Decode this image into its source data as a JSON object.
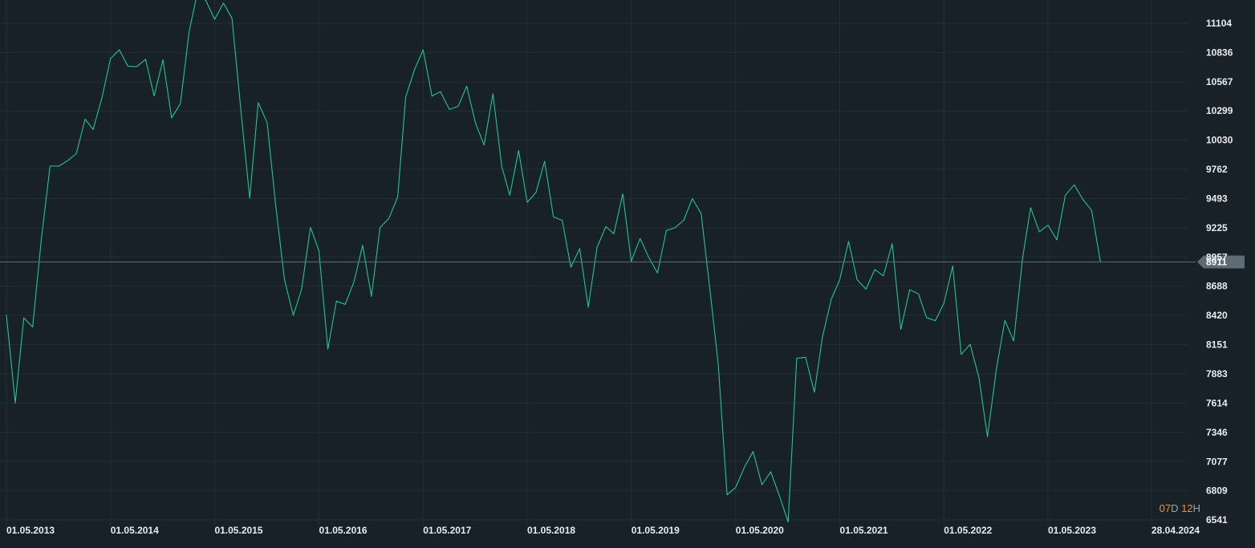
{
  "chart_data": {
    "type": "line",
    "title": "",
    "xlabel": "",
    "ylabel": "",
    "x_ticks": [
      "01.05.2013",
      "01.05.2014",
      "01.05.2015",
      "01.05.2016",
      "01.05.2017",
      "01.05.2018",
      "01.05.2019",
      "01.05.2020",
      "01.05.2021",
      "01.05.2022",
      "01.05.2023",
      "28.04.2024"
    ],
    "y_ticks": [
      11104,
      10836,
      10567,
      10299,
      10030,
      9762,
      9493,
      9225,
      8957,
      8688,
      8420,
      8151,
      7883,
      7614,
      7346,
      7077,
      6809,
      6541
    ],
    "ylim": [
      6541,
      11300
    ],
    "xlim": [
      "2013-05-01",
      "2024-04-28"
    ],
    "grid": true,
    "current_value": 8911,
    "current_value_label": "8911",
    "series": [
      {
        "color": "#1fc78c",
        "points": [
          [
            "2013-05-01",
            8426
          ],
          [
            "2013-06-01",
            7615
          ],
          [
            "2013-07-01",
            8398
          ],
          [
            "2013-08-01",
            8313
          ],
          [
            "2013-09-01",
            9133
          ],
          [
            "2013-10-01",
            9792
          ],
          [
            "2013-11-01",
            9792
          ],
          [
            "2013-12-01",
            9841
          ],
          [
            "2014-01-01",
            9906
          ],
          [
            "2014-02-01",
            10223
          ],
          [
            "2014-03-01",
            10128
          ],
          [
            "2014-04-01",
            10420
          ],
          [
            "2014-05-01",
            10779
          ],
          [
            "2014-06-01",
            10861
          ],
          [
            "2014-07-01",
            10709
          ],
          [
            "2014-08-01",
            10705
          ],
          [
            "2014-09-01",
            10773
          ],
          [
            "2014-10-01",
            10436
          ],
          [
            "2014-11-01",
            10769
          ],
          [
            "2014-12-01",
            10235
          ],
          [
            "2015-01-01",
            10365
          ],
          [
            "2015-02-01",
            11030
          ],
          [
            "2015-03-01",
            11380
          ],
          [
            "2015-04-01",
            11310
          ],
          [
            "2015-05-01",
            11140
          ],
          [
            "2015-06-01",
            11290
          ],
          [
            "2015-07-01",
            11150
          ],
          [
            "2015-08-01",
            10306
          ],
          [
            "2015-09-01",
            9496
          ],
          [
            "2015-10-01",
            10376
          ],
          [
            "2015-11-01",
            10192
          ],
          [
            "2015-12-01",
            9439
          ],
          [
            "2016-01-01",
            8750
          ],
          [
            "2016-02-01",
            8420
          ],
          [
            "2016-03-01",
            8660
          ],
          [
            "2016-04-01",
            9230
          ],
          [
            "2016-05-01",
            9013
          ],
          [
            "2016-06-01",
            8110
          ],
          [
            "2016-07-01",
            8551
          ],
          [
            "2016-08-01",
            8522
          ],
          [
            "2016-09-01",
            8732
          ],
          [
            "2016-10-01",
            9065
          ],
          [
            "2016-11-01",
            8594
          ],
          [
            "2016-12-01",
            9227
          ],
          [
            "2017-01-01",
            9311
          ],
          [
            "2017-02-01",
            9508
          ],
          [
            "2017-03-01",
            10426
          ],
          [
            "2017-04-01",
            10678
          ],
          [
            "2017-05-01",
            10860
          ],
          [
            "2017-06-01",
            10435
          ],
          [
            "2017-07-01",
            10475
          ],
          [
            "2017-08-01",
            10312
          ],
          [
            "2017-09-01",
            10341
          ],
          [
            "2017-10-01",
            10525
          ],
          [
            "2017-11-01",
            10183
          ],
          [
            "2017-12-01",
            9985
          ],
          [
            "2018-01-01",
            10457
          ],
          [
            "2018-02-01",
            9785
          ],
          [
            "2018-03-01",
            9524
          ],
          [
            "2018-04-01",
            9935
          ],
          [
            "2018-05-01",
            9459
          ],
          [
            "2018-06-01",
            9550
          ],
          [
            "2018-07-01",
            9837
          ],
          [
            "2018-08-01",
            9326
          ],
          [
            "2018-09-01",
            9292
          ],
          [
            "2018-10-01",
            8862
          ],
          [
            "2018-11-01",
            9034
          ],
          [
            "2018-12-01",
            8495
          ],
          [
            "2019-01-01",
            9047
          ],
          [
            "2019-02-01",
            9236
          ],
          [
            "2019-03-01",
            9169
          ],
          [
            "2019-04-01",
            9537
          ],
          [
            "2019-05-01",
            8917
          ],
          [
            "2019-06-01",
            9127
          ],
          [
            "2019-07-01",
            8955
          ],
          [
            "2019-08-01",
            8809
          ],
          [
            "2019-09-01",
            9200
          ],
          [
            "2019-10-01",
            9225
          ],
          [
            "2019-11-01",
            9294
          ],
          [
            "2019-12-01",
            9493
          ],
          [
            "2020-01-01",
            9355
          ],
          [
            "2020-02-01",
            8651
          ],
          [
            "2020-03-01",
            7970
          ],
          [
            "2020-04-01",
            6772
          ],
          [
            "2020-05-01",
            6840
          ],
          [
            "2020-06-01",
            7027
          ],
          [
            "2020-07-01",
            7170
          ],
          [
            "2020-08-01",
            6864
          ],
          [
            "2020-09-01",
            6983
          ],
          [
            "2020-10-01",
            6766
          ],
          [
            "2020-11-01",
            6522
          ],
          [
            "2020-12-01",
            8026
          ],
          [
            "2021-01-01",
            8035
          ],
          [
            "2021-02-01",
            7713
          ],
          [
            "2021-03-01",
            8215
          ],
          [
            "2021-04-01",
            8568
          ],
          [
            "2021-05-01",
            8748
          ],
          [
            "2021-06-01",
            9100
          ],
          [
            "2021-07-01",
            8748
          ],
          [
            "2021-08-01",
            8661
          ],
          [
            "2021-09-01",
            8842
          ],
          [
            "2021-10-01",
            8783
          ],
          [
            "2021-11-01",
            9080
          ],
          [
            "2021-12-01",
            8290
          ],
          [
            "2022-01-01",
            8656
          ],
          [
            "2022-02-01",
            8618
          ],
          [
            "2022-03-01",
            8400
          ],
          [
            "2022-04-01",
            8371
          ],
          [
            "2022-05-01",
            8532
          ],
          [
            "2022-06-01",
            8874
          ],
          [
            "2022-07-01",
            8061
          ],
          [
            "2022-08-01",
            8155
          ],
          [
            "2022-09-01",
            7847
          ],
          [
            "2022-10-01",
            7303
          ],
          [
            "2022-11-01",
            7926
          ],
          [
            "2022-12-01",
            8374
          ],
          [
            "2023-01-01",
            8185
          ],
          [
            "2023-02-01",
            8947
          ],
          [
            "2023-03-01",
            9410
          ],
          [
            "2023-04-01",
            9188
          ],
          [
            "2023-05-01",
            9250
          ],
          [
            "2023-06-01",
            9114
          ],
          [
            "2023-07-01",
            9524
          ],
          [
            "2023-08-01",
            9620
          ],
          [
            "2023-09-01",
            9483
          ],
          [
            "2023-10-01",
            9385
          ],
          [
            "2023-11-01",
            8911
          ]
        ]
      }
    ]
  },
  "timer": {
    "days": "07",
    "days_unit": "D",
    "hours": "12",
    "hours_unit": "H"
  },
  "colors": {
    "background": "#182127",
    "grid": "#222e35",
    "line": "#1fc78c",
    "axis_text": "#e8ecef",
    "price_line": "#5d6b76",
    "price_badge": "#5d6b76",
    "timer_accent": "#f7931a"
  }
}
